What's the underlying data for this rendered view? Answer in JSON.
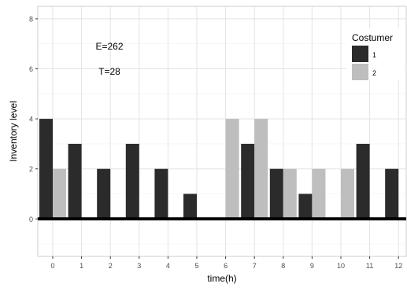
{
  "chart_data": {
    "type": "bar",
    "xlabel": "time(h)",
    "ylabel": "Inventory level",
    "x": [
      "0",
      "1",
      "2",
      "3",
      "4",
      "5",
      "6",
      "7",
      "8",
      "9",
      "10",
      "11",
      "12"
    ],
    "yticks": [
      "0",
      "2",
      "4",
      "6",
      "8"
    ],
    "ylim": [
      -1.5,
      8.5
    ],
    "grid": true,
    "series": [
      {
        "name": "1",
        "color": "#2b2b2b",
        "values": [
          4,
          3,
          2,
          3,
          2,
          1,
          0,
          3,
          2,
          1,
          0,
          3,
          2
        ]
      },
      {
        "name": "2",
        "color": "#bebebe",
        "values": [
          2,
          0,
          0,
          0,
          0,
          0,
          4,
          4,
          2,
          2,
          2,
          0,
          0
        ]
      }
    ],
    "legend": {
      "title": "Costumer",
      "position": "top-right"
    },
    "annotations": [
      "E=262",
      "T=28"
    ],
    "zero_line": 0
  }
}
